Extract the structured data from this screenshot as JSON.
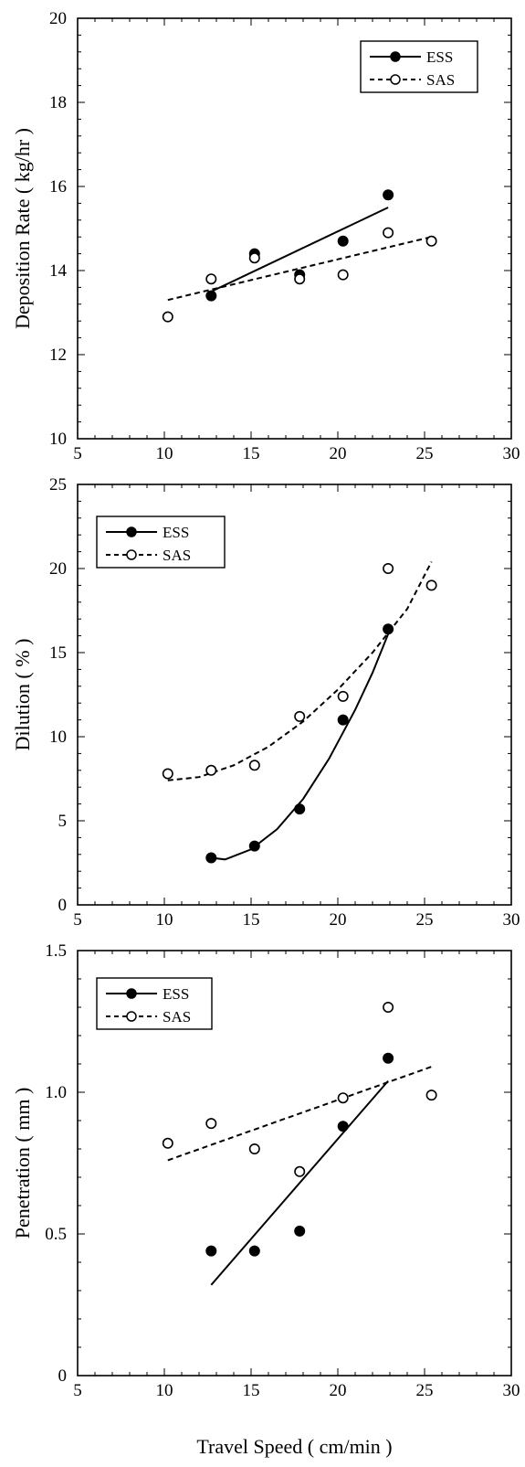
{
  "chart_data": [
    {
      "type": "scatter",
      "ylabel": "Deposition Rate ( kg/hr )",
      "xlabel": "",
      "xlim": [
        5,
        30
      ],
      "ylim": [
        10,
        20
      ],
      "xticks": [
        5,
        10,
        15,
        20,
        25,
        30
      ],
      "yticks": [
        10,
        12,
        14,
        16,
        18,
        20
      ],
      "xtick_labels": [
        "5",
        "10",
        "15",
        "20",
        "25",
        "30"
      ],
      "ytick_labels": [
        "10",
        "12",
        "14",
        "16",
        "18",
        "20"
      ],
      "legend_position": "top-right",
      "grid": false,
      "series": [
        {
          "name": "ESS",
          "marker": "filled-circle",
          "line": "solid",
          "points": [
            [
              12.7,
              13.4
            ],
            [
              15.2,
              14.4
            ],
            [
              17.8,
              13.9
            ],
            [
              20.3,
              14.7
            ],
            [
              22.9,
              15.8
            ]
          ],
          "fit": [
            [
              12.7,
              13.5
            ],
            [
              22.9,
              15.5
            ]
          ]
        },
        {
          "name": "SAS",
          "marker": "open-circle",
          "line": "dashed",
          "points": [
            [
              10.2,
              12.9
            ],
            [
              12.7,
              13.8
            ],
            [
              15.2,
              14.3
            ],
            [
              17.8,
              13.8
            ],
            [
              20.3,
              13.9
            ],
            [
              22.9,
              14.9
            ],
            [
              25.4,
              14.7
            ]
          ],
          "fit": [
            [
              10.2,
              13.3
            ],
            [
              25.4,
              14.8
            ]
          ]
        }
      ]
    },
    {
      "type": "scatter",
      "ylabel": "Dilution ( % )",
      "xlabel": "",
      "xlim": [
        5,
        30
      ],
      "ylim": [
        0,
        25
      ],
      "xticks": [
        5,
        10,
        15,
        20,
        25,
        30
      ],
      "yticks": [
        0,
        5,
        10,
        15,
        20,
        25
      ],
      "xtick_labels": [
        "5",
        "10",
        "15",
        "20",
        "25",
        "30"
      ],
      "ytick_labels": [
        "0",
        "5",
        "10",
        "15",
        "20",
        "25"
      ],
      "legend_position": "top-left",
      "grid": false,
      "series": [
        {
          "name": "ESS",
          "marker": "filled-circle",
          "line": "solid",
          "points": [
            [
              12.7,
              2.8
            ],
            [
              15.2,
              3.5
            ],
            [
              17.8,
              5.7
            ],
            [
              20.3,
              11.0
            ],
            [
              22.9,
              16.4
            ]
          ],
          "fit": [
            [
              12.7,
              2.8
            ],
            [
              13.5,
              2.7
            ],
            [
              15.0,
              3.3
            ],
            [
              16.5,
              4.5
            ],
            [
              18.0,
              6.3
            ],
            [
              19.5,
              8.7
            ],
            [
              21.0,
              11.6
            ],
            [
              22.0,
              13.8
            ],
            [
              22.9,
              16.1
            ]
          ]
        },
        {
          "name": "SAS",
          "marker": "open-circle",
          "line": "dashed",
          "points": [
            [
              10.2,
              7.8
            ],
            [
              12.7,
              8.0
            ],
            [
              15.2,
              8.3
            ],
            [
              17.8,
              11.2
            ],
            [
              20.3,
              12.4
            ],
            [
              22.9,
              20.0
            ],
            [
              25.4,
              19.0
            ]
          ],
          "fit": [
            [
              10.2,
              7.4
            ],
            [
              12.0,
              7.6
            ],
            [
              14.0,
              8.3
            ],
            [
              16.0,
              9.4
            ],
            [
              18.0,
              10.9
            ],
            [
              20.0,
              12.8
            ],
            [
              22.0,
              15.0
            ],
            [
              24.0,
              17.6
            ],
            [
              25.4,
              20.4
            ]
          ]
        }
      ]
    },
    {
      "type": "scatter",
      "ylabel": "Penetration ( mm )",
      "xlabel": "Travel Speed ( cm/min )",
      "xlim": [
        5,
        30
      ],
      "ylim": [
        0,
        1.5
      ],
      "xticks": [
        5,
        10,
        15,
        20,
        25,
        30
      ],
      "yticks": [
        0,
        0.5,
        1.0,
        1.5
      ],
      "xtick_labels": [
        "5",
        "10",
        "15",
        "20",
        "25",
        "30"
      ],
      "ytick_labels": [
        "0",
        "0.5",
        "1.0",
        "1.5"
      ],
      "legend_position": "top-left",
      "grid": false,
      "series": [
        {
          "name": "ESS",
          "marker": "filled-circle",
          "line": "solid",
          "points": [
            [
              12.7,
              0.44
            ],
            [
              15.2,
              0.44
            ],
            [
              17.8,
              0.51
            ],
            [
              20.3,
              0.88
            ],
            [
              22.9,
              1.12
            ]
          ],
          "fit": [
            [
              12.7,
              0.32
            ],
            [
              22.9,
              1.04
            ]
          ]
        },
        {
          "name": "SAS",
          "marker": "open-circle",
          "line": "dashed",
          "points": [
            [
              10.2,
              0.82
            ],
            [
              12.7,
              0.89
            ],
            [
              15.2,
              0.8
            ],
            [
              17.8,
              0.72
            ],
            [
              20.3,
              0.98
            ],
            [
              22.9,
              1.3
            ],
            [
              25.4,
              0.99
            ]
          ],
          "fit": [
            [
              10.2,
              0.76
            ],
            [
              25.4,
              1.09
            ]
          ]
        }
      ]
    }
  ]
}
